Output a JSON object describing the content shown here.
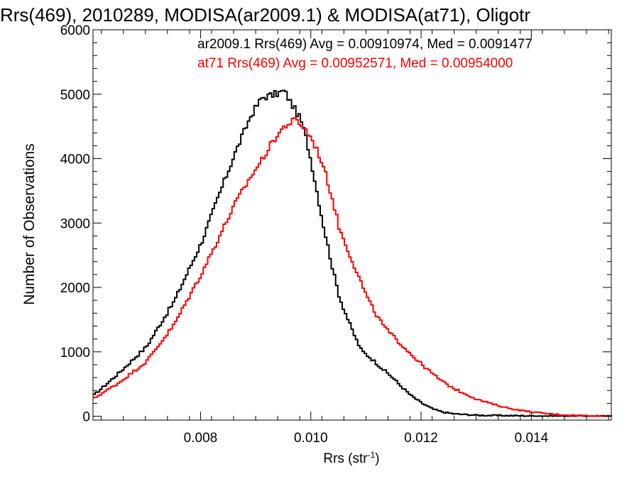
{
  "chart_data": {
    "type": "line",
    "title": "Rrs(469), 2010289, MODISA(ar2009.1) & MODISA(at71), Oligotr",
    "xlabel": "Rrs (str",
    "xlabel_sup": "-1",
    "xlabel_end": ")",
    "ylabel": "Number of Observations",
    "xlim": [
      0.00605,
      0.01545
    ],
    "ylim": [
      -60,
      6000
    ],
    "xticks": [
      0.008,
      0.01,
      0.012,
      0.014
    ],
    "xtick_labels": [
      "0.008",
      "0.010",
      "0.012",
      "0.014"
    ],
    "yticks": [
      0,
      1000,
      2000,
      3000,
      4000,
      5000,
      6000
    ],
    "ytick_labels": [
      "0",
      "1000",
      "2000",
      "3000",
      "4000",
      "5000",
      "6000"
    ],
    "grid": false,
    "legend_position": "top-right",
    "annotations": [
      {
        "text": "ar2009.1 Rrs(469) Avg = 0.00910974, Med = 0.0091477",
        "color": "#000000"
      },
      {
        "text": "at71 Rrs(469) Avg = 0.00952571, Med = 0.00954000",
        "color": "#ff0000"
      }
    ],
    "series": [
      {
        "color": "#000000",
        "x": [
          0.00605,
          0.0065,
          0.007,
          0.0075,
          0.008,
          0.0083,
          0.0086,
          0.0089,
          0.0091,
          0.0093,
          0.0095,
          0.0096,
          0.0097,
          0.0098,
          0.0099,
          0.01,
          0.0101,
          0.0102,
          0.0103,
          0.0104,
          0.0105,
          0.0106,
          0.0107,
          0.0108,
          0.0109,
          0.011,
          0.0111,
          0.0112,
          0.0113,
          0.0114,
          0.0115,
          0.0116,
          0.0117,
          0.0118,
          0.012,
          0.0122,
          0.0124,
          0.0126,
          0.0128,
          0.013,
          0.0135,
          0.014,
          0.01545
        ],
        "y": [
          330,
          670,
          1080,
          1780,
          2700,
          3400,
          4070,
          4680,
          4950,
          4990,
          5050,
          4900,
          4750,
          4600,
          4300,
          3900,
          3450,
          3000,
          2600,
          2200,
          1850,
          1620,
          1400,
          1200,
          1020,
          950,
          880,
          800,
          720,
          650,
          570,
          480,
          400,
          320,
          200,
          110,
          60,
          35,
          25,
          15,
          10,
          5,
          0
        ]
      },
      {
        "color": "#ff0000",
        "x": [
          0.00605,
          0.0065,
          0.007,
          0.0075,
          0.008,
          0.0083,
          0.0086,
          0.0089,
          0.0091,
          0.0093,
          0.0095,
          0.0096,
          0.0097,
          0.0098,
          0.0099,
          0.01,
          0.0101,
          0.0102,
          0.0103,
          0.0104,
          0.0105,
          0.0106,
          0.0107,
          0.0108,
          0.0109,
          0.011,
          0.0111,
          0.0112,
          0.0113,
          0.0114,
          0.0115,
          0.0116,
          0.0117,
          0.0118,
          0.012,
          0.0122,
          0.0124,
          0.0126,
          0.0128,
          0.013,
          0.0132,
          0.0134,
          0.0136,
          0.0138,
          0.014,
          0.0142,
          0.0144,
          0.0146,
          0.0148,
          0.015,
          0.0152,
          0.01545
        ],
        "y": [
          280,
          520,
          850,
          1420,
          2220,
          2750,
          3290,
          3730,
          3990,
          4280,
          4500,
          4550,
          4600,
          4530,
          4430,
          4300,
          4120,
          3900,
          3600,
          3280,
          2900,
          2700,
          2480,
          2270,
          2060,
          1850,
          1680,
          1530,
          1410,
          1300,
          1220,
          1130,
          1050,
          960,
          800,
          650,
          520,
          420,
          340,
          260,
          210,
          160,
          120,
          90,
          65,
          45,
          30,
          20,
          12,
          8,
          3,
          0
        ]
      }
    ]
  }
}
